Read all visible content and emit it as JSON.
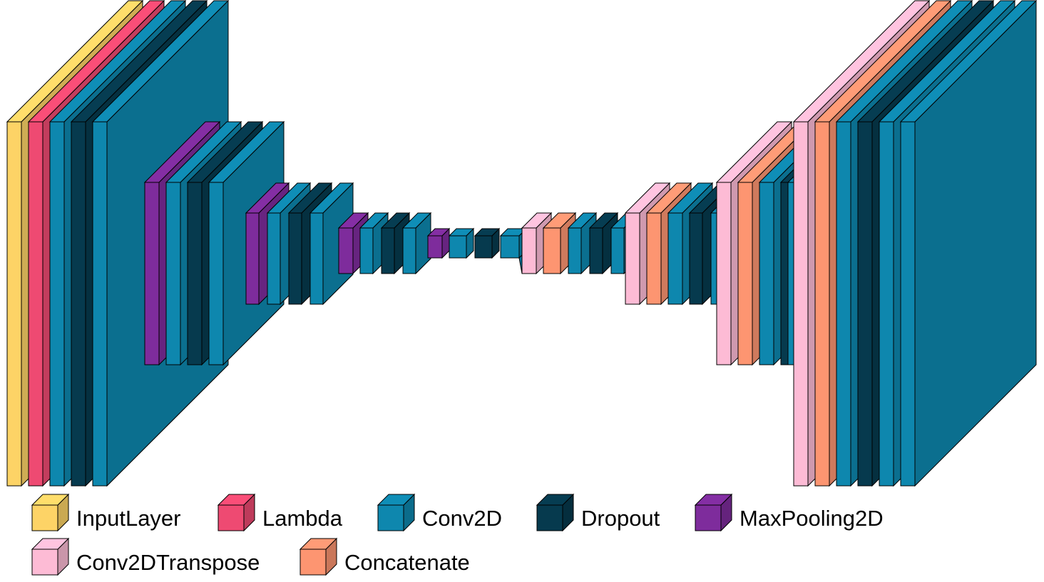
{
  "layer_types": {
    "input": {
      "label": "InputLayer",
      "color": "#FDD366"
    },
    "lambda": {
      "label": "Lambda",
      "color": "#EE4A72"
    },
    "conv": {
      "label": "Conv2D",
      "color": "#0E87AE"
    },
    "dropout": {
      "label": "Dropout",
      "color": "#063A4E"
    },
    "pool": {
      "label": "MaxPooling2D",
      "color": "#7E2C9C"
    },
    "convt": {
      "label": "Conv2DTranspose",
      "color": "#FDBBD5"
    },
    "concat": {
      "label": "Concatenate",
      "color": "#FD9571"
    }
  },
  "legend_order": [
    "input",
    "lambda",
    "conv",
    "dropout",
    "pool",
    "convt",
    "concat"
  ],
  "layer_sequence": [
    "input",
    "lambda",
    "conv",
    "dropout",
    "conv",
    "pool",
    "conv",
    "dropout",
    "conv",
    "pool",
    "conv",
    "dropout",
    "conv",
    "pool",
    "conv",
    "dropout",
    "conv",
    "pool",
    "conv",
    "dropout",
    "conv",
    "convt",
    "concat",
    "conv",
    "dropout",
    "conv",
    "convt",
    "concat",
    "conv",
    "dropout",
    "conv",
    "convt",
    "concat",
    "conv",
    "dropout",
    "conv",
    "convt",
    "concat",
    "conv",
    "dropout",
    "conv",
    "conv"
  ]
}
